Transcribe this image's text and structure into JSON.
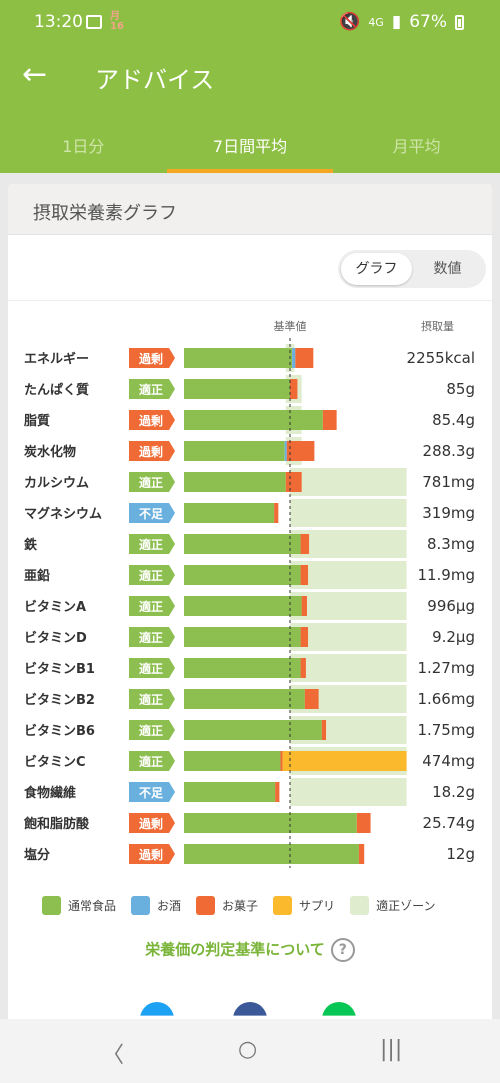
{
  "status": {
    "time": "13:20",
    "calendar": "月\n16",
    "network": "4G",
    "battery": "67%"
  },
  "header": {
    "title": "アドバイス"
  },
  "tabs": [
    {
      "label": "1日分",
      "active": false
    },
    {
      "label": "7日間平均",
      "active": true
    },
    {
      "label": "月平均",
      "active": false
    }
  ],
  "card": {
    "title": "摂取栄養素グラフ"
  },
  "toggle": {
    "graph": "グラフ",
    "numbers": "数値",
    "selected": "グラフ"
  },
  "colors": {
    "food": "#8cbf4f",
    "alcohol": "#6ab0de",
    "sweets": "#ef6a35",
    "supplement": "#fbb92d",
    "zone": "#dfeccd",
    "excess": "#ef6a35",
    "proper": "#8cbf4f",
    "lack": "#6ab0de"
  },
  "chart_data": {
    "type": "bar",
    "stacked": true,
    "header_reference": "基準値",
    "header_intake": "摂取量",
    "status_labels": {
      "excess": "過剰",
      "proper": "適正",
      "lack": "不足"
    },
    "series_names": [
      "通常食品",
      "お酒",
      "お菓子",
      "サプリ"
    ],
    "zone_name": "適正ゾーン",
    "items": [
      {
        "name": "エネルギー",
        "status": "excess",
        "intake": "2255kcal",
        "food": 1.02,
        "alcohol": 0.03,
        "sweets": 0.17,
        "supplement": 0,
        "zone": [
          0.96,
          1.04
        ]
      },
      {
        "name": "たんぱく質",
        "status": "proper",
        "intake": "85g",
        "food": 1.0,
        "alcohol": 0,
        "sweets": 0.07,
        "supplement": 0,
        "zone": [
          0.96,
          1.11
        ]
      },
      {
        "name": "脂質",
        "status": "excess",
        "intake": "85.4g",
        "food": 1.31,
        "alcohol": 0,
        "sweets": 0.13,
        "supplement": 0,
        "zone": [
          0.96,
          1.11
        ]
      },
      {
        "name": "炭水化物",
        "status": "excess",
        "intake": "288.3g",
        "food": 0.95,
        "alcohol": 0.02,
        "sweets": 0.26,
        "supplement": 0,
        "zone": [
          0.96,
          1.11
        ]
      },
      {
        "name": "カルシウム",
        "status": "proper",
        "intake": "781mg",
        "food": 0.96,
        "alcohol": 0,
        "sweets": 0.15,
        "supplement": 0,
        "zone": [
          1.0,
          2.1
        ]
      },
      {
        "name": "マグネシウム",
        "status": "lack",
        "intake": "319mg",
        "food": 0.85,
        "alcohol": 0,
        "sweets": 0.04,
        "supplement": 0,
        "zone": [
          1.0,
          2.1
        ]
      },
      {
        "name": "鉄",
        "status": "proper",
        "intake": "8.3mg",
        "food": 1.1,
        "alcohol": 0,
        "sweets": 0.08,
        "supplement": 0,
        "zone": [
          1.0,
          2.1
        ]
      },
      {
        "name": "亜鉛",
        "status": "proper",
        "intake": "11.9mg",
        "food": 1.1,
        "alcohol": 0,
        "sweets": 0.07,
        "supplement": 0,
        "zone": [
          1.0,
          2.1
        ]
      },
      {
        "name": "ビタミンA",
        "status": "proper",
        "intake": "996μg",
        "food": 1.11,
        "alcohol": 0,
        "sweets": 0.05,
        "supplement": 0,
        "zone": [
          1.0,
          2.1
        ]
      },
      {
        "name": "ビタミンD",
        "status": "proper",
        "intake": "9.2μg",
        "food": 1.1,
        "alcohol": 0,
        "sweets": 0.07,
        "supplement": 0,
        "zone": [
          1.0,
          2.1
        ]
      },
      {
        "name": "ビタミンB1",
        "status": "proper",
        "intake": "1.27mg",
        "food": 1.1,
        "alcohol": 0,
        "sweets": 0.05,
        "supplement": 0,
        "zone": [
          1.0,
          2.1
        ]
      },
      {
        "name": "ビタミンB2",
        "status": "proper",
        "intake": "1.66mg",
        "food": 1.14,
        "alcohol": 0,
        "sweets": 0.13,
        "supplement": 0,
        "zone": [
          1.0,
          2.1
        ]
      },
      {
        "name": "ビタミンB6",
        "status": "proper",
        "intake": "1.75mg",
        "food": 1.3,
        "alcohol": 0,
        "sweets": 0.04,
        "supplement": 0,
        "zone": [
          1.0,
          2.1
        ]
      },
      {
        "name": "ビタミンC",
        "status": "proper",
        "intake": "474mg",
        "food": 0.91,
        "alcohol": 0,
        "sweets": 0.02,
        "supplement": 1.17,
        "zone": [
          1.0,
          2.1
        ]
      },
      {
        "name": "食物繊維",
        "status": "lack",
        "intake": "18.2g",
        "food": 0.86,
        "alcohol": 0,
        "sweets": 0.04,
        "supplement": 0,
        "zone": [
          1.0,
          2.1
        ]
      },
      {
        "name": "飽和脂肪酸",
        "status": "excess",
        "intake": "25.74g",
        "food": 1.63,
        "alcohol": 0,
        "sweets": 0.13,
        "supplement": 0,
        "zone": [
          0,
          0
        ]
      },
      {
        "name": "塩分",
        "status": "excess",
        "intake": "12g",
        "food": 1.65,
        "alcohol": 0,
        "sweets": 0.05,
        "supplement": 0,
        "zone": [
          0,
          0
        ]
      }
    ]
  },
  "legend": [
    "通常食品",
    "お酒",
    "お菓子",
    "サプリ",
    "適正ゾーン"
  ],
  "criteria_link": "栄養価の判定基準について",
  "help_icon": "?",
  "share": [
    "twitter-icon",
    "facebook-icon",
    "line-icon"
  ],
  "nav": {
    "back": "〈",
    "home": "○",
    "recents": "|||"
  }
}
